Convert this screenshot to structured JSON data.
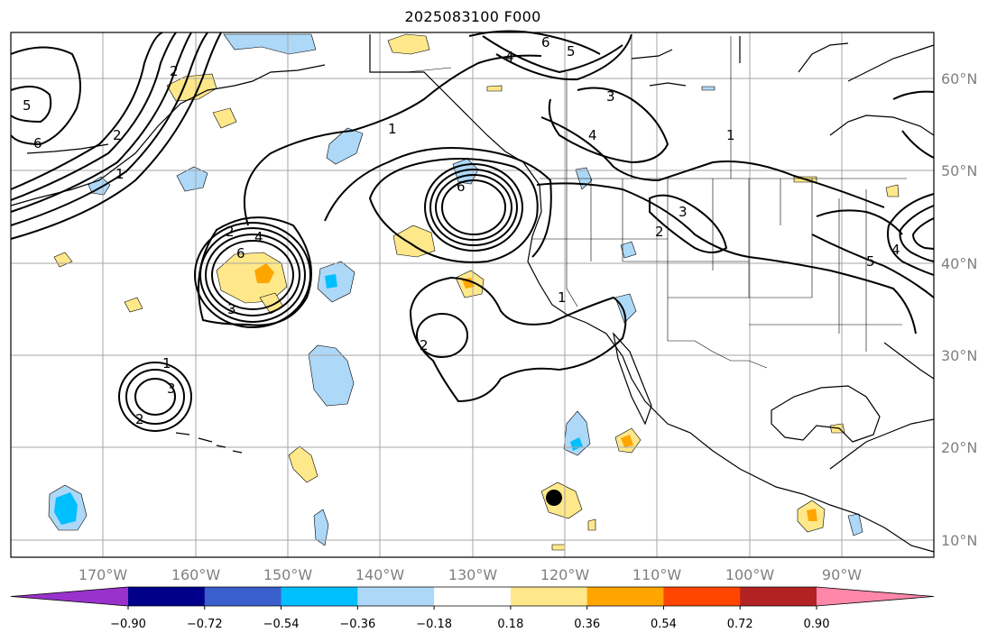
{
  "title": "2025083100 F000",
  "lat_labels": [
    "60°N",
    "50°N",
    "40°N",
    "30°N",
    "20°N",
    "10°N"
  ],
  "lon_labels": [
    "170°W",
    "160°W",
    "150°W",
    "140°W",
    "130°W",
    "120°W",
    "110°W",
    "100°W",
    "90°W"
  ],
  "colorbar": {
    "ticks": [
      "−0.90",
      "−0.72",
      "−0.54",
      "−0.36",
      "−0.18",
      "0.18",
      "0.36",
      "0.54",
      "0.72",
      "0.90"
    ],
    "colors": [
      "#9932cc",
      "#00008b",
      "#3a5fcd",
      "#00bfff",
      "#add8f8",
      "#ffffff",
      "#ffe88a",
      "#ffa500",
      "#ff4500",
      "#b22222",
      "#ff88aa"
    ]
  },
  "contour_labels": [
    "1",
    "2",
    "3",
    "4",
    "5",
    "6"
  ],
  "colors": {
    "grid": "#a6a6a6",
    "land": "#000000",
    "label": "#808080"
  }
}
